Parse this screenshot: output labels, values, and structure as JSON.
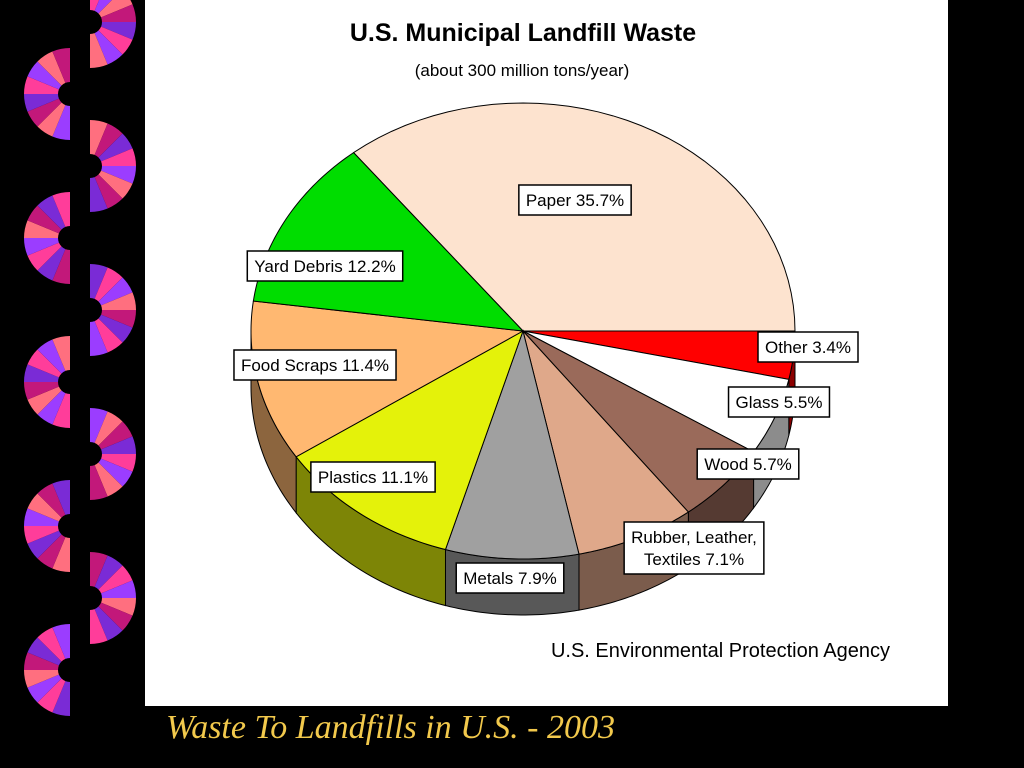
{
  "slide": {
    "caption": "Waste To Landfills in U.S. - 2003",
    "caption_color": "#f2c94c",
    "background": "#000000"
  },
  "decoration": {
    "name": "pinwheel-ribbon",
    "colors": [
      "#ff3d9a",
      "#9b3dff",
      "#ff6f7f",
      "#c2187a",
      "#7a2bd6"
    ]
  },
  "chart_data": {
    "type": "pie",
    "title": "U.S. Municipal Landfill Waste",
    "subtitle": "(about 300 million tons/year)",
    "source": "U.S. Environmental Protection Agency",
    "style": "3d-tilted",
    "slices": [
      {
        "label": "Paper 35.7%",
        "category": "Paper",
        "value": 35.7,
        "color": "#fde3cf"
      },
      {
        "label": "Other 3.4%",
        "category": "Other",
        "value": 3.4,
        "color": "#ff0000"
      },
      {
        "label": "Glass 5.5%",
        "category": "Glass",
        "value": 5.5,
        "color": "#ffffff"
      },
      {
        "label": "Wood 5.7%",
        "category": "Wood",
        "value": 5.7,
        "color": "#9a6a5a"
      },
      {
        "label": [
          "Rubber, Leather,",
          "Textiles 7.1%"
        ],
        "category": "Rubber, Leather, Textiles",
        "value": 7.1,
        "color": "#dfa88a"
      },
      {
        "label": "Metals 7.9%",
        "category": "Metals",
        "value": 7.9,
        "color": "#a0a0a0"
      },
      {
        "label": "Plastics 11.1%",
        "category": "Plastics",
        "value": 11.1,
        "color": "#e4f20a"
      },
      {
        "label": "Food Scraps 11.4%",
        "category": "Food Scraps",
        "value": 11.4,
        "color": "#ffb871"
      },
      {
        "label": "Yard Debris 12.2%",
        "category": "Yard Debris",
        "value": 12.2,
        "color": "#00dd00"
      }
    ]
  }
}
